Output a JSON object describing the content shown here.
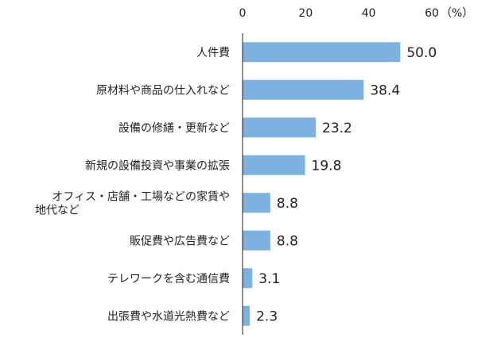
{
  "chart_data": {
    "type": "bar",
    "orientation": "horizontal",
    "unit": "（%）",
    "xlim": [
      0,
      60
    ],
    "xticks": [
      "0",
      "20",
      "40",
      "60"
    ],
    "grid": false,
    "bar_color": "#7DB2E0",
    "categories": [
      [
        "人件費"
      ],
      [
        "原材料や商品の仕入れなど"
      ],
      [
        "設備の修繕・更新など"
      ],
      [
        "新規の設備投資や事業の拡張"
      ],
      [
        "オフィス・店舗・工場などの家賃や",
        "地代など"
      ],
      [
        "販促費や広告費など"
      ],
      [
        "テレワークを含む通信費"
      ],
      [
        "出張費や水道光熱費など"
      ]
    ],
    "values": [
      50.0,
      38.4,
      23.2,
      19.8,
      8.8,
      8.8,
      3.1,
      2.3
    ],
    "value_labels": [
      "50.0",
      "38.4",
      "23.2",
      "19.8",
      "8.8",
      "8.8",
      "3.1",
      "2.3"
    ]
  }
}
